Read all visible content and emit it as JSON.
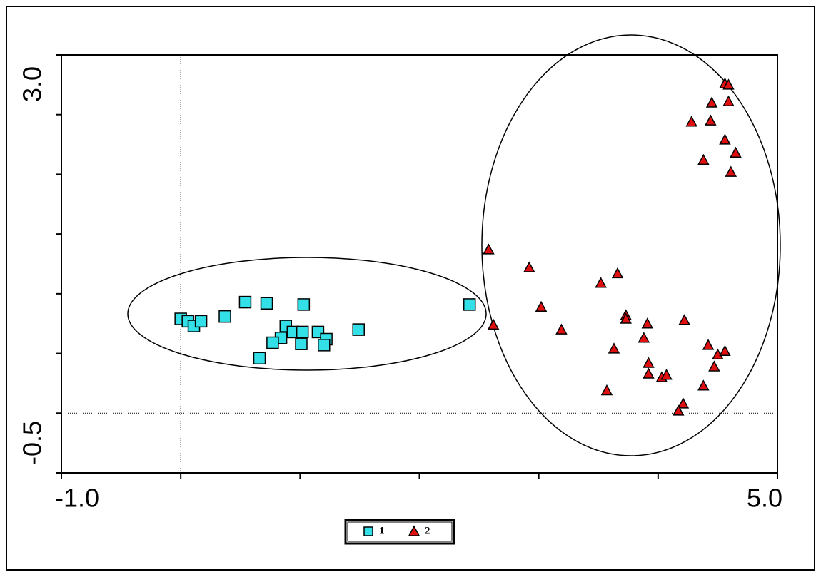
{
  "chart_data": {
    "type": "scatter",
    "xlim": [
      -1.0,
      5.0
    ],
    "ylim": [
      -0.5,
      3.0
    ],
    "xticks": [
      {
        "value": -1,
        "label": "-1.0"
      },
      {
        "value": 5,
        "label": "5.0"
      }
    ],
    "yticks": [
      {
        "value": -0.5,
        "label": "-0.5"
      },
      {
        "value": 3,
        "label": "3.0"
      }
    ],
    "xticks_minor": [
      0,
      1,
      2,
      3,
      4
    ],
    "yticks_minor": [
      0,
      0.5,
      1,
      1.5,
      2,
      2.5
    ],
    "reference_x": 0,
    "reference_y": 0,
    "legend": "bottom",
    "series": [
      {
        "name": "1",
        "color": "#33e0e8",
        "marker": "square",
        "x": [
          0.0,
          0.06,
          0.11,
          0.17,
          0.37,
          0.54,
          0.72,
          1.03,
          0.88,
          0.94,
          1.02,
          0.84,
          0.77,
          1.01,
          1.15,
          1.22,
          1.2,
          0.66,
          1.49,
          2.42
        ],
        "values": [
          0.79,
          0.77,
          0.73,
          0.77,
          0.81,
          0.93,
          0.92,
          0.91,
          0.73,
          0.68,
          0.68,
          0.63,
          0.59,
          0.58,
          0.68,
          0.62,
          0.57,
          0.46,
          0.7,
          0.91
        ]
      },
      {
        "name": "2",
        "color": "#e01010",
        "marker": "triangle",
        "x": [
          2.58,
          2.62,
          2.92,
          3.02,
          3.19,
          3.52,
          3.66,
          3.73,
          3.73,
          3.63,
          3.57,
          3.88,
          3.91,
          3.92,
          3.92,
          4.03,
          4.07,
          4.22,
          4.21,
          4.17,
          4.38,
          4.42,
          4.47,
          4.5,
          4.56,
          4.28,
          4.38,
          4.44,
          4.45,
          4.56,
          4.56,
          4.59,
          4.59,
          4.65,
          4.61
        ],
        "values": [
          1.37,
          0.74,
          1.22,
          0.89,
          0.7,
          1.09,
          1.17,
          0.82,
          0.79,
          0.54,
          0.19,
          0.63,
          0.75,
          0.42,
          0.33,
          0.3,
          0.32,
          0.78,
          0.08,
          0.02,
          0.23,
          0.57,
          0.39,
          0.49,
          0.52,
          2.44,
          2.12,
          2.45,
          2.6,
          2.29,
          2.76,
          2.75,
          2.61,
          2.18,
          2.02
        ]
      }
    ]
  }
}
